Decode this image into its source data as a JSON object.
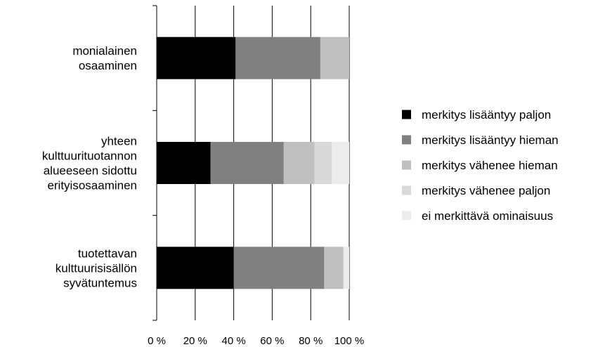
{
  "chart_data": {
    "type": "bar",
    "orientation": "horizontal",
    "stacked": true,
    "title": "",
    "xlabel": "",
    "ylabel": "",
    "xlim": [
      0,
      100
    ],
    "x_ticks": [
      "0 %",
      "20 %",
      "40 %",
      "60 %",
      "80 %",
      "100 %"
    ],
    "grid": true,
    "legend_position": "right",
    "categories": [
      "monialainen osaaminen",
      "yhteen kulttuurituotannon alueeseen sidottu erityisosaaminen",
      "tuotettavan kulttuurisisällön syvätuntemus"
    ],
    "category_lines": [
      [
        "monialainen",
        "osaaminen"
      ],
      [
        "yhteen",
        "kulttuurituotannon",
        "alueeseen sidottu",
        "erityisosaaminen"
      ],
      [
        "tuotettavan",
        "kulttuurisisällön",
        "syvätuntemus"
      ]
    ],
    "series": [
      {
        "name": "merkitys lisääntyy paljon",
        "color": "#000000",
        "values": [
          41,
          28,
          40
        ]
      },
      {
        "name": "merkitys lisääntyy hieman",
        "color": "#808080",
        "values": [
          44,
          38,
          47
        ]
      },
      {
        "name": "merkitys vähenee hieman",
        "color": "#bfbfbf",
        "values": [
          15,
          16,
          10
        ]
      },
      {
        "name": "merkitys vähenee paljon",
        "color": "#d9d9d9",
        "values": [
          0,
          9,
          0
        ]
      },
      {
        "name": "ei merkittävä ominaisuus",
        "color": "#ececec",
        "values": [
          0,
          9,
          3
        ]
      }
    ]
  }
}
